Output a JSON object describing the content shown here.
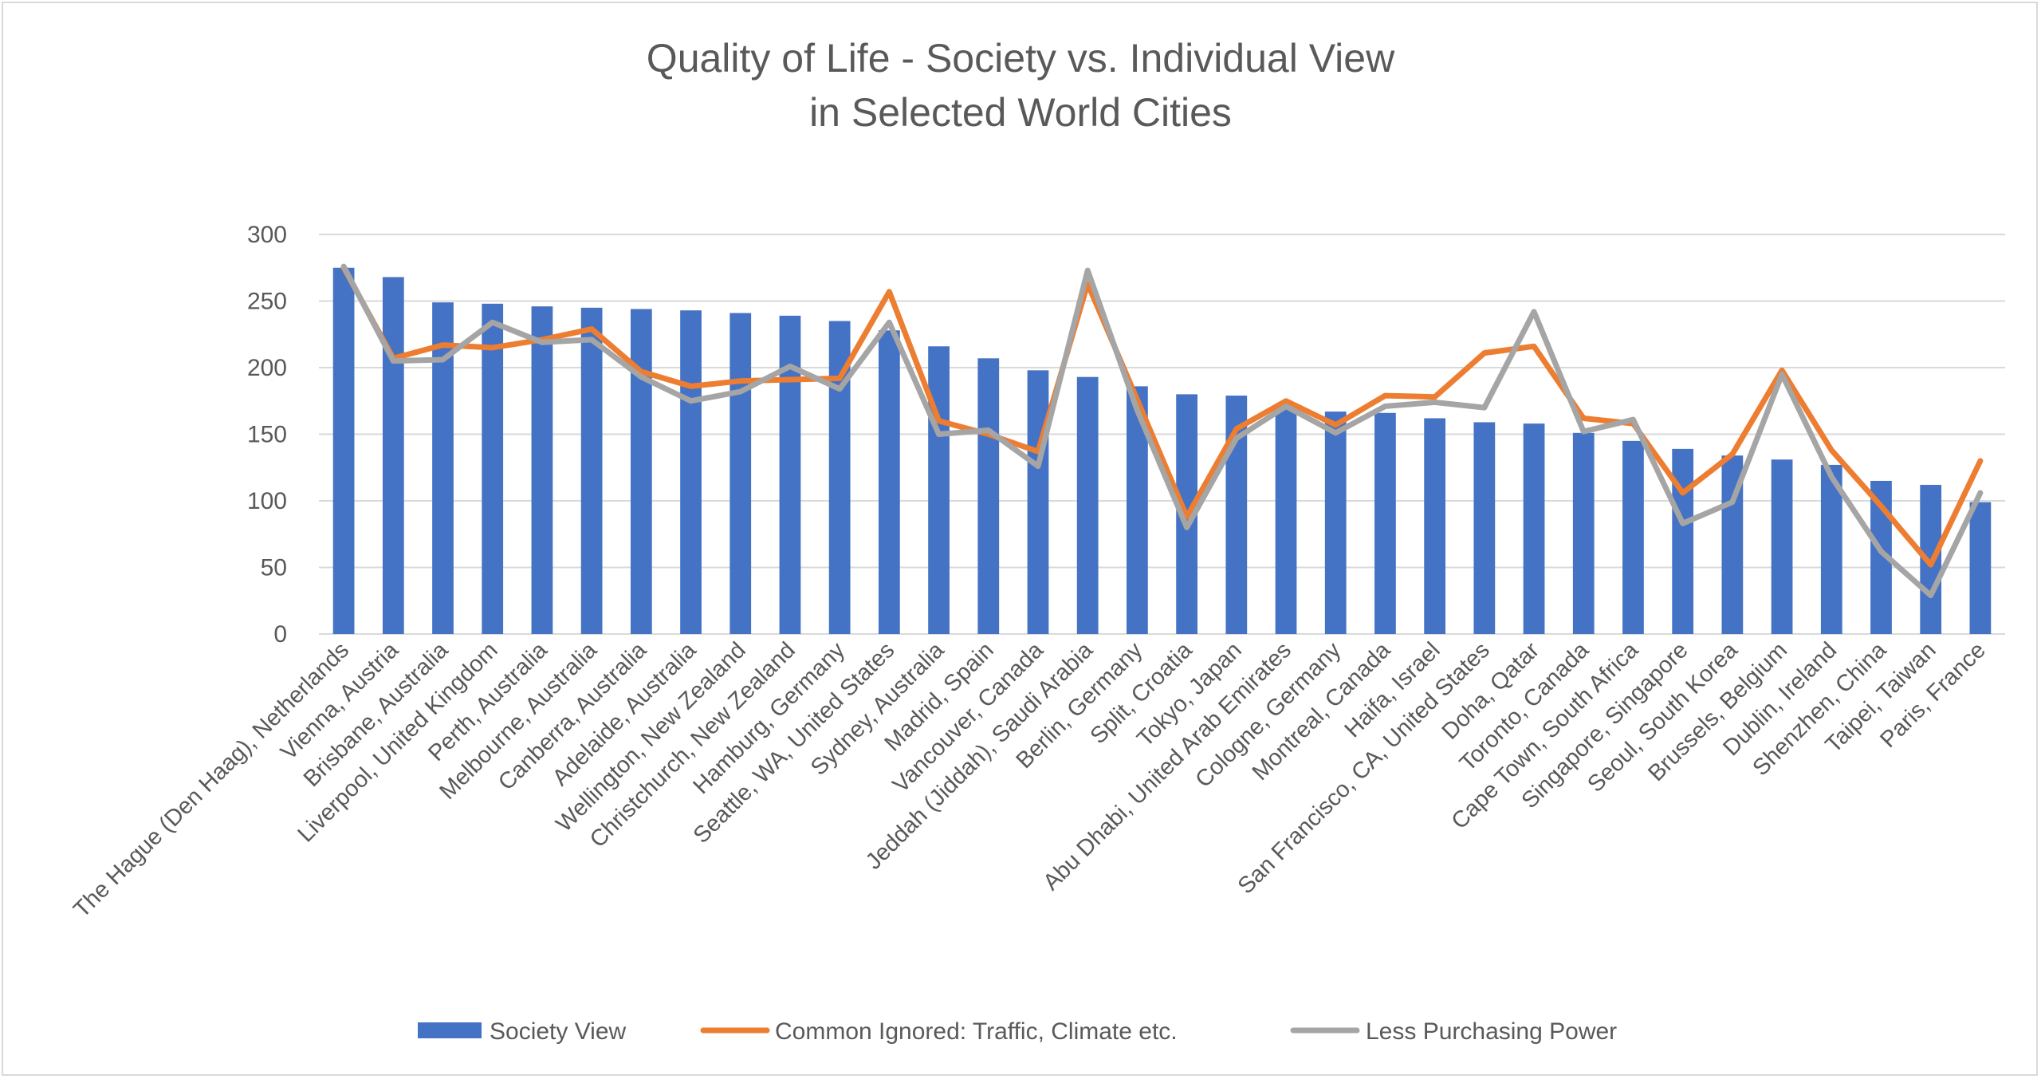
{
  "chart_data": {
    "type": "bar+line",
    "title": [
      "Quality of Life - Society vs. Individual View",
      "in Selected World Cities"
    ],
    "ylim": [
      0,
      300
    ],
    "yticks": [
      0,
      50,
      100,
      150,
      200,
      250,
      300
    ],
    "grid": true,
    "legend_position": "bottom",
    "categories": [
      "The Hague (Den Haag), Netherlands",
      "Vienna, Austria",
      "Brisbane, Australia",
      "Liverpool, United Kingdom",
      "Perth, Australia",
      "Melbourne, Australia",
      "Canberra, Australia",
      "Adelaide, Australia",
      "Wellington, New Zealand",
      "Christchurch, New Zealand",
      "Hamburg, Germany",
      "Seattle, WA, United States",
      "Sydney, Australia",
      "Madrid, Spain",
      "Vancouver, Canada",
      "Jeddah (Jiddah), Saudi Arabia",
      "Berlin, Germany",
      "Split, Croatia",
      "Tokyo, Japan",
      "Abu Dhabi, United Arab Emirates",
      "Cologne, Germany",
      "Montreal, Canada",
      "Haifa, Israel",
      "San Francisco, CA, United States",
      "Doha, Qatar",
      "Toronto, Canada",
      "Cape Town, South Africa",
      "Singapore, Singapore",
      "Seoul, South Korea",
      "Brussels, Belgium",
      "Dublin, Ireland",
      "Shenzhen, China",
      "Taipei, Taiwan",
      "Paris, France"
    ],
    "series": [
      {
        "name": "Society View",
        "type": "bar",
        "color": "#4472C4",
        "values": [
          275,
          268,
          249,
          248,
          246,
          245,
          244,
          243,
          241,
          239,
          235,
          228,
          216,
          207,
          198,
          193,
          186,
          180,
          179,
          170,
          167,
          166,
          162,
          159,
          158,
          151,
          145,
          139,
          134,
          131,
          127,
          115,
          112,
          99
        ]
      },
      {
        "name": "Common Ignored: Traffic, Climate etc.",
        "type": "line",
        "color": "#ED7D31",
        "values": [
          275,
          207,
          217,
          215,
          221,
          229,
          197,
          186,
          190,
          191,
          192,
          257,
          160,
          150,
          137,
          263,
          176,
          88,
          154,
          175,
          157,
          179,
          178,
          211,
          216,
          162,
          158,
          106,
          135,
          198,
          138,
          96,
          52,
          130
        ]
      },
      {
        "name": "Less Purchasing Power",
        "type": "line",
        "color": "#A5A5A5",
        "values": [
          276,
          205,
          206,
          234,
          219,
          221,
          193,
          175,
          182,
          201,
          184,
          234,
          150,
          153,
          126,
          273,
          168,
          80,
          147,
          171,
          151,
          171,
          174,
          170,
          242,
          152,
          161,
          83,
          99,
          195,
          118,
          62,
          29,
          106
        ]
      }
    ]
  }
}
